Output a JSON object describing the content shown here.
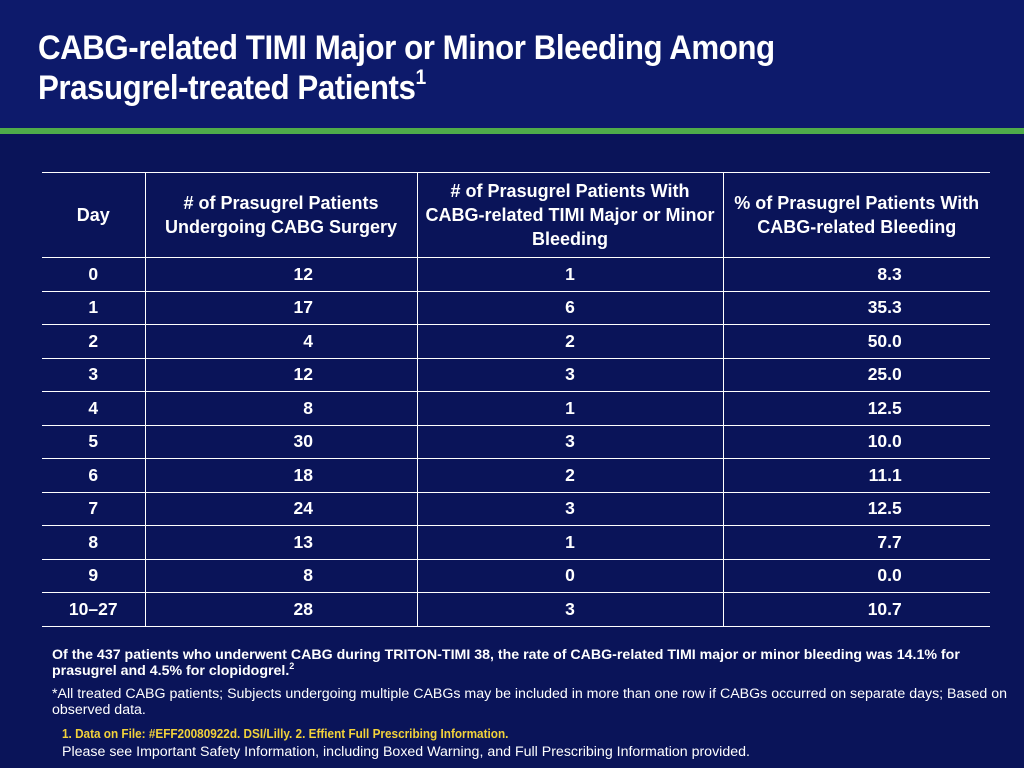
{
  "title": {
    "text": "CABG-related TIMI Major or Minor Bleeding Among Prasugrel-treated Patients",
    "line1": "CABG-related TIMI Major or Minor Bleeding Among",
    "line2": "Prasugrel-treated Patients",
    "superscript": "1"
  },
  "colors": {
    "background": "#0a1459",
    "header": "#0d1a6b",
    "rule": "#4fac4a",
    "references": "#f2d23a"
  },
  "table": {
    "headers": [
      "Day",
      "# of Prasugrel Patients Undergoing CABG Surgery",
      "# of Prasugrel Patients With CABG-related TIMI Major or Minor Bleeding",
      "% of Prasugrel Patients With CABG-related Bleeding"
    ],
    "rows": [
      [
        "0",
        "12",
        "1",
        "8.3"
      ],
      [
        "1",
        "17",
        "6",
        "35.3"
      ],
      [
        "2",
        "4",
        "2",
        "50.0"
      ],
      [
        "3",
        "12",
        "3",
        "25.0"
      ],
      [
        "4",
        "8",
        "1",
        "12.5"
      ],
      [
        "5",
        "30",
        "3",
        "10.0"
      ],
      [
        "6",
        "18",
        "2",
        "11.1"
      ],
      [
        "7",
        "24",
        "3",
        "12.5"
      ],
      [
        "8",
        "13",
        "1",
        "7.7"
      ],
      [
        "9",
        "8",
        "0",
        "0.0"
      ],
      [
        "10–27",
        "28",
        "3",
        "10.7"
      ]
    ]
  },
  "summary": {
    "text": "Of the 437 patients who underwent CABG during TRITON-TIMI 38, the rate of CABG-related TIMI major or minor bleeding was 14.1% for prasugrel and 4.5% for clopidogrel.",
    "superscript": "2"
  },
  "footnote": "*All treated CABG patients; Subjects undergoing multiple CABGs may be included in more than one row if CABGs occurred on separate days; Based on observed data.",
  "references": "1.  Data on File: #EFF20080922d. DSI/Lilly. 2. Effient Full Prescribing Information.",
  "safety_note": "Please see Important Safety Information, including Boxed Warning, and Full Prescribing Information provided."
}
